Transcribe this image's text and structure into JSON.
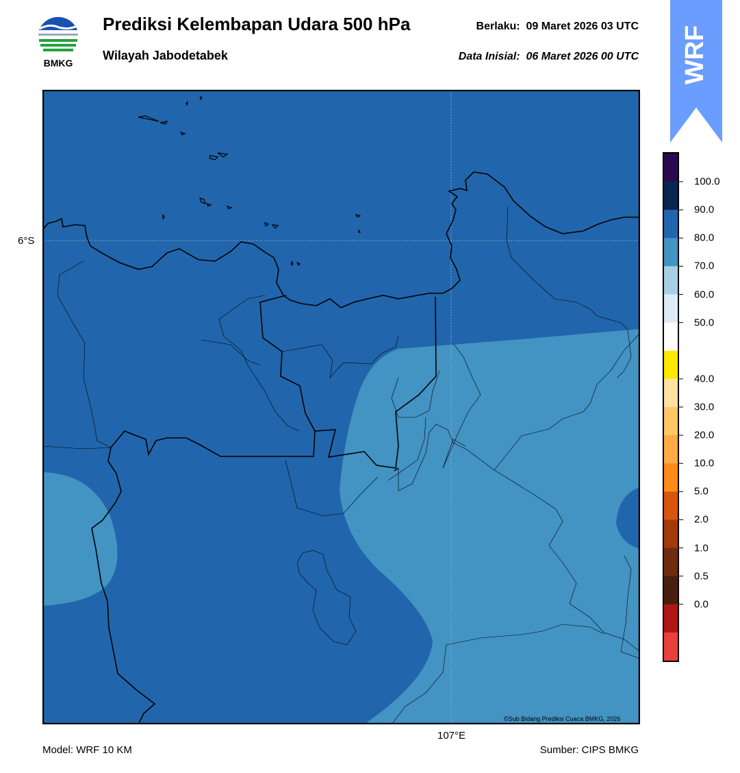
{
  "header": {
    "title": "Prediksi Kelembapan Udara 500 hPa",
    "subtitle": "Wilayah Jabodetabek",
    "valid_label": "Berlaku:",
    "valid_time": "09 Maret 2026 03 UTC",
    "init_label": "Data Inisial:",
    "init_time": "06 Maret 2026 00 UTC"
  },
  "logo": {
    "icon": "bmkg-logo-icon",
    "text": "BMKG"
  },
  "badge": {
    "text": "WRF",
    "icon": "up-arrow-icon",
    "color": "#6a9dff"
  },
  "map": {
    "lat_label": "6°S",
    "lon_label": "107°E",
    "credit": "©Sub Bidang Prediksi Cuaca BMKG, 2026",
    "field_colors": {
      "dark": "#2166ac",
      "light": "#4393c3"
    }
  },
  "colorbar": {
    "ticks": [
      "100.0",
      "90.0",
      "80.0",
      "70.0",
      "60.0",
      "50.0",
      "40.0",
      "30.0",
      "20.0",
      "10.0",
      "5.0",
      "2.0",
      "1.0",
      "0.5",
      "0.0"
    ],
    "colors": [
      "#2c0a4f",
      "#08264f",
      "#2166ac",
      "#4393c3",
      "#a6d1e4",
      "#deebf7",
      "#ffffff",
      "#ffe800",
      "#ffe2a0",
      "#ffc766",
      "#ffaa44",
      "#ff8c1a",
      "#d9540f",
      "#a33a0a",
      "#6e2b0d",
      "#4a1e0e",
      "#b01616",
      "#e8403a"
    ]
  },
  "footer": {
    "model": "Model: WRF 10 KM",
    "source": "Sumber: CIPS BMKG"
  }
}
